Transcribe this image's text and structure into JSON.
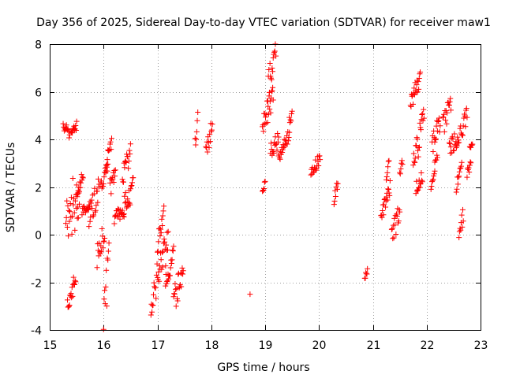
{
  "chart_data": {
    "type": "scatter",
    "title": "Day 356 of 2025, Sidereal Day-to-day VTEC variation (SDTVAR) for receiver maw1",
    "xlabel": "GPS time / hours",
    "ylabel": "SDTVAR / TECUs",
    "xlim": [
      15,
      23
    ],
    "ylim": [
      -4,
      8
    ],
    "xticks": [
      "15",
      "16",
      "17",
      "18",
      "19",
      "20",
      "21",
      "22",
      "23"
    ],
    "yticks": [
      "-4",
      "-2",
      "0",
      "2",
      "4",
      "6",
      "8"
    ],
    "grid": true,
    "marker": "plus",
    "color": "#ff0000",
    "segments": [
      [
        15.25,
        15.38,
        4.6,
        4.2,
        0.2
      ],
      [
        15.3,
        15.55,
        1.0,
        1.4,
        1.2
      ],
      [
        15.33,
        15.48,
        -2.8,
        -1.8,
        0.5
      ],
      [
        15.4,
        15.5,
        4.2,
        4.6,
        0.2
      ],
      [
        15.5,
        15.62,
        1.8,
        2.5,
        0.3
      ],
      [
        15.6,
        15.75,
        1.0,
        1.2,
        0.2
      ],
      [
        15.72,
        15.92,
        0.8,
        2.0,
        0.6
      ],
      [
        15.88,
        16.02,
        -0.8,
        0.2,
        0.6
      ],
      [
        15.95,
        16.08,
        2.0,
        2.8,
        0.3
      ],
      [
        16.0,
        16.1,
        -3.6,
        -1.0,
        1.0
      ],
      [
        16.05,
        16.15,
        3.2,
        3.9,
        0.4
      ],
      [
        16.12,
        16.22,
        2.0,
        2.6,
        0.4
      ],
      [
        16.2,
        16.38,
        0.7,
        1.1,
        0.3
      ],
      [
        16.35,
        16.5,
        2.5,
        3.5,
        0.5
      ],
      [
        16.38,
        16.55,
        1.2,
        2.0,
        0.5
      ],
      [
        16.88,
        17.2,
        -2.7,
        -0.3,
        0.7
      ],
      [
        17.0,
        17.12,
        -0.5,
        0.9,
        0.5
      ],
      [
        17.15,
        17.3,
        -2.0,
        -0.8,
        0.5
      ],
      [
        17.3,
        17.48,
        -2.8,
        -1.4,
        0.6
      ],
      [
        17.7,
        17.75,
        3.8,
        4.8,
        0.4
      ],
      [
        17.9,
        18.02,
        3.4,
        4.6,
        0.4
      ],
      [
        18.72,
        18.72,
        -2.5,
        -2.5,
        0.0
      ],
      [
        18.95,
        19.0,
        1.9,
        2.2,
        0.2
      ],
      [
        18.95,
        19.15,
        4.6,
        5.8,
        0.5
      ],
      [
        19.05,
        19.2,
        6.2,
        7.9,
        0.6
      ],
      [
        19.1,
        19.25,
        3.4,
        4.0,
        0.4
      ],
      [
        19.25,
        19.45,
        3.2,
        4.2,
        0.3
      ],
      [
        19.45,
        19.5,
        4.6,
        5.5,
        0.4
      ],
      [
        19.85,
        20.02,
        2.6,
        3.2,
        0.25
      ],
      [
        20.28,
        20.35,
        1.5,
        2.3,
        0.3
      ],
      [
        20.85,
        20.9,
        -1.8,
        -1.5,
        0.1
      ],
      [
        21.15,
        21.32,
        0.8,
        2.0,
        0.3
      ],
      [
        21.25,
        21.3,
        2.4,
        3.0,
        0.2
      ],
      [
        21.35,
        21.5,
        -0.3,
        1.2,
        0.6
      ],
      [
        21.5,
        21.55,
        2.5,
        3.1,
        0.2
      ],
      [
        21.7,
        21.88,
        5.5,
        6.6,
        0.4
      ],
      [
        21.75,
        21.95,
        3.0,
        4.8,
        0.6
      ],
      [
        21.8,
        21.92,
        2.0,
        2.5,
        0.3
      ],
      [
        22.08,
        22.15,
        2.1,
        2.8,
        0.2
      ],
      [
        22.1,
        22.25,
        3.8,
        4.8,
        0.5
      ],
      [
        22.15,
        22.2,
        3.0,
        3.3,
        0.1
      ],
      [
        22.3,
        22.45,
        4.5,
        5.7,
        0.5
      ],
      [
        22.42,
        22.6,
        3.5,
        4.2,
        0.4
      ],
      [
        22.55,
        22.65,
        2.0,
        3.0,
        0.4
      ],
      [
        22.6,
        22.68,
        0.0,
        0.9,
        0.4
      ],
      [
        22.62,
        22.75,
        4.2,
        5.0,
        0.4
      ],
      [
        22.75,
        22.82,
        2.6,
        3.0,
        0.2
      ],
      [
        22.8,
        22.85,
        3.7,
        3.8,
        0.1
      ]
    ]
  }
}
